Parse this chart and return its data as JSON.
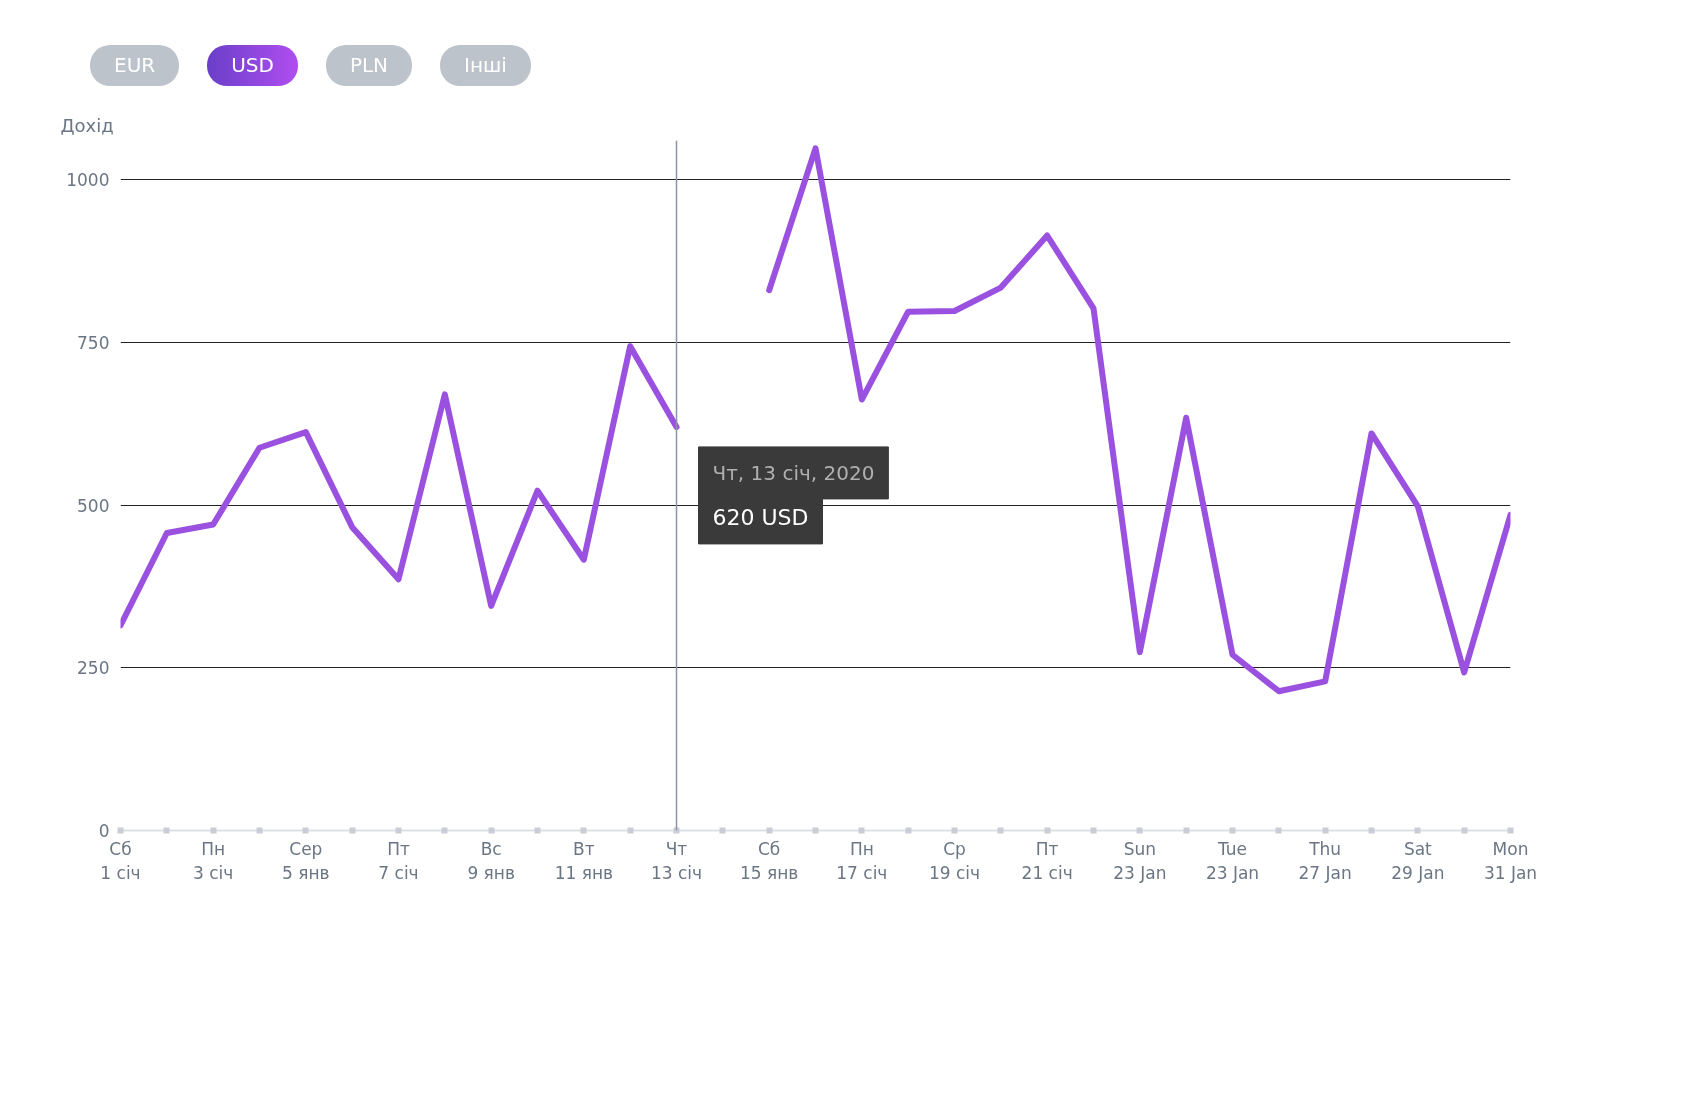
{
  "chart_data": {
    "type": "line",
    "ylabel": "Дохід",
    "annotations": [
      "EUR",
      "USD",
      "PLN",
      "Інші",
      "Чт, 13 січ, 2020",
      "620 USD"
    ],
    "categories": [
      "Сб\n1 січ",
      null,
      "Пн\n3 січ",
      null,
      "Сер\n5 янв",
      null,
      "Пт\n7 січ",
      null,
      "Вс\n9 янв",
      null,
      "Вт\n11 янв",
      null,
      "Чт\n13 січ",
      null,
      "Сб\n15 янв",
      null,
      "Пн\n17 січ",
      null,
      "Ср\n19 січ",
      null,
      "Пт\n21 січ",
      null,
      "Sun\n23 Jan",
      null,
      "Tue\n23 Jan",
      null,
      "Thu\n27 Jan",
      null,
      "Sat\n29 Jan",
      null,
      "Mon\n31 Jan"
    ],
    "ylim": [
      0,
      1060
    ],
    "yticks": [
      0,
      250,
      500,
      750,
      1000
    ],
    "grid": "y",
    "marker": "none",
    "line_style": "solid",
    "ref_lines": [
      {
        "axis": "x",
        "value": "Чт\n13 січ",
        "color": "#8a94a6"
      }
    ],
    "series": [
      {
        "color": "#9b51e0",
        "values": [
          315,
          457,
          470,
          588,
          612,
          466,
          386,
          670,
          345,
          522,
          416,
          744,
          620,
          null,
          830,
          1048,
          662,
          797,
          798,
          834,
          914,
          802,
          274,
          634,
          270,
          214,
          229,
          610,
          498,
          243,
          485
        ]
      }
    ]
  }
}
